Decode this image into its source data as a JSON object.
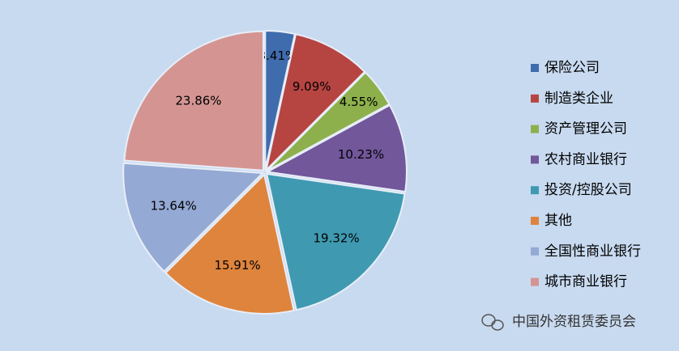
{
  "chart_data": {
    "type": "pie",
    "categories": [
      "保险公司",
      "制造类企业",
      "资产管理公司",
      "农村商业银行",
      "投资/控股公司",
      "其他",
      "全国性商业银行",
      "城市商业银行"
    ],
    "values": [
      3.41,
      9.09,
      4.55,
      10.23,
      19.32,
      15.91,
      13.64,
      23.86
    ],
    "value_labels": [
      "3.41%",
      "9.09%",
      "4.55%",
      "10.23%",
      "19.32%",
      "15.91%",
      "13.64%",
      "23.86%"
    ],
    "colors": [
      "#3f6cad",
      "#b64542",
      "#8db04c",
      "#72579b",
      "#3f9ab1",
      "#df843d",
      "#94a9d3",
      "#d49592"
    ],
    "watermark": "中国外资租赁委员会"
  }
}
